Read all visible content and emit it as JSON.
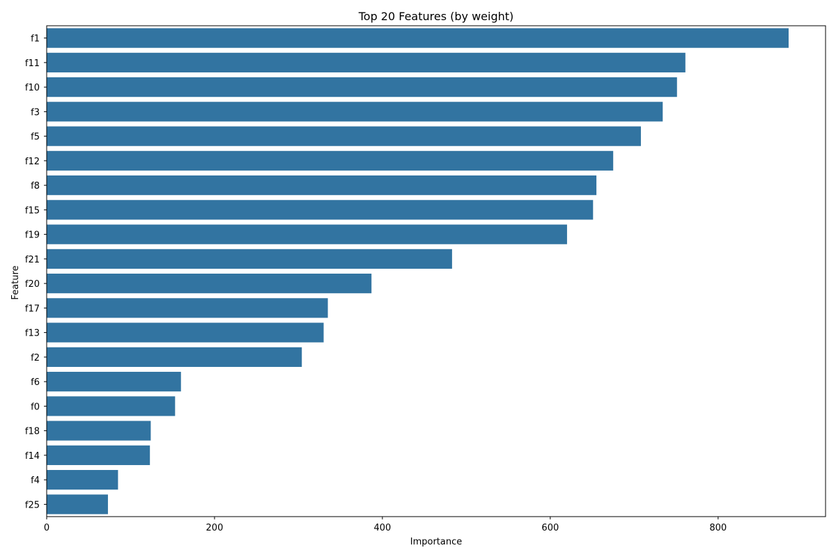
{
  "chart_data": {
    "type": "bar",
    "orientation": "horizontal",
    "title": "Top 20 Features (by weight)",
    "xlabel": "Importance",
    "ylabel": "Feature",
    "xlim": [
      0,
      928
    ],
    "xticks": [
      0,
      200,
      400,
      600,
      800
    ],
    "grid": false,
    "bar_color": "#3274a1",
    "categories": [
      "f1",
      "f11",
      "f10",
      "f3",
      "f5",
      "f12",
      "f8",
      "f15",
      "f19",
      "f21",
      "f20",
      "f17",
      "f13",
      "f2",
      "f6",
      "f0",
      "f18",
      "f14",
      "f4",
      "f25"
    ],
    "values": [
      884,
      761,
      751,
      734,
      708,
      675,
      655,
      651,
      620,
      483,
      387,
      335,
      330,
      304,
      160,
      153,
      124,
      123,
      85,
      73
    ]
  }
}
